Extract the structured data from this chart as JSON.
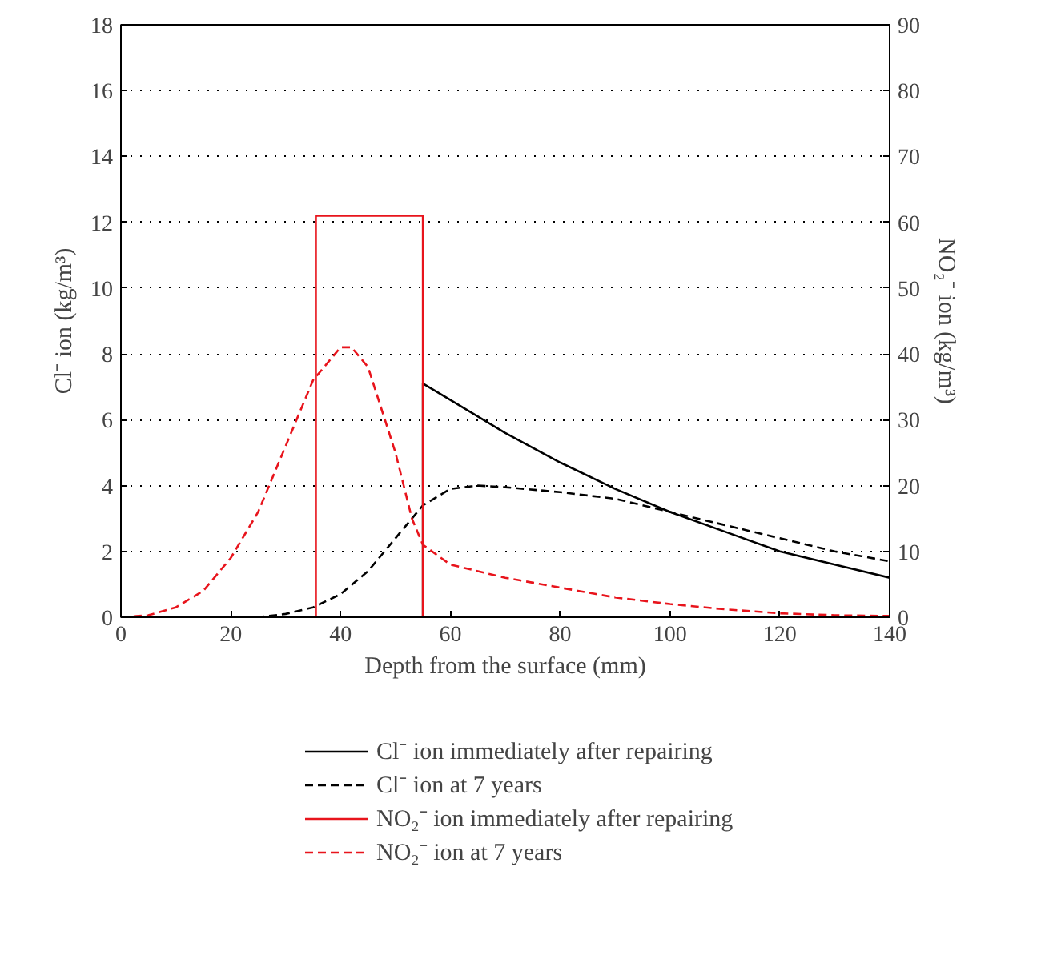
{
  "chart_data": {
    "type": "line",
    "xlabel": "Depth from the surface (mm)",
    "ylabel": "Cl⁻ ion (kg/m³)",
    "y2label": "NO₂⁻ ion (kg/m³)",
    "xlim": [
      0,
      140
    ],
    "xticks": [
      0,
      20,
      40,
      60,
      80,
      100,
      120,
      140
    ],
    "ylim": [
      0,
      18
    ],
    "yticks": [
      0,
      2,
      4,
      6,
      8,
      10,
      12,
      14,
      16,
      18
    ],
    "y2lim": [
      0,
      90
    ],
    "y2ticks": [
      0,
      10,
      20,
      30,
      40,
      50,
      60,
      70,
      80,
      90
    ],
    "grid": "y",
    "legend": "bottom",
    "marker": "none",
    "series": [
      {
        "name": "Cl⁻ ion immediately after repairing",
        "color": "#000000",
        "line_style": "solid",
        "x": [
          0,
          55,
          55,
          60,
          70,
          80,
          90,
          100,
          110,
          120,
          130,
          140
        ],
        "values": [
          0,
          0,
          7.1,
          6.6,
          5.6,
          4.7,
          3.9,
          3.2,
          2.6,
          2.0,
          1.6,
          1.2
        ]
      },
      {
        "name": "Cl⁻ ion at 7 years",
        "color": "#000000",
        "line_style": "dashed",
        "x": [
          20,
          25,
          30,
          35,
          40,
          45,
          50,
          55,
          60,
          65,
          70,
          80,
          90,
          100,
          110,
          120,
          130,
          140
        ],
        "values": [
          0,
          0,
          0.1,
          0.3,
          0.7,
          1.4,
          2.4,
          3.4,
          3.9,
          4.0,
          3.95,
          3.8,
          3.6,
          3.2,
          2.8,
          2.4,
          2.0,
          1.7
        ]
      },
      {
        "name": "NO₂⁻ ion immediately after repairing",
        "color": "#e8141c",
        "line_style": "solid",
        "axis": "y2",
        "x": [
          0,
          35.5,
          35.5,
          55,
          55,
          140
        ],
        "values": [
          0,
          0,
          61,
          61,
          0,
          0
        ]
      },
      {
        "name": "NO₂⁻ ion at 7 years",
        "color": "#e8141c",
        "line_style": "dashed",
        "axis": "y2",
        "x": [
          0,
          5,
          10,
          15,
          20,
          25,
          30,
          35,
          40,
          42,
          45,
          50,
          53,
          55,
          60,
          70,
          80,
          90,
          100,
          110,
          120,
          130,
          140
        ],
        "values": [
          0,
          0.3,
          1.5,
          4,
          9,
          16,
          26,
          36,
          41,
          41,
          38,
          25,
          15,
          11,
          8,
          6,
          4.5,
          3,
          2,
          1.2,
          0.6,
          0.3,
          0.2
        ]
      }
    ]
  }
}
